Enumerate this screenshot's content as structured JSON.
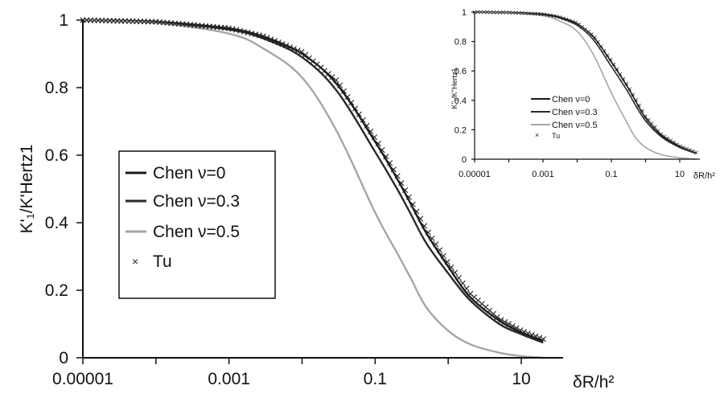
{
  "chart_data": [
    {
      "id": "main",
      "type": "line",
      "title": "",
      "xlabel": "δR/h²",
      "ylabel": "K'₁/K'Hertz1",
      "xscale": "log",
      "xlim": [
        1e-05,
        30
      ],
      "ylim": [
        0,
        1
      ],
      "x_ticks": [
        {
          "value": 1e-05,
          "label": "0.00001"
        },
        {
          "value": 0.001,
          "label": "0.001"
        },
        {
          "value": 0.1,
          "label": "0.1"
        },
        {
          "value": 10,
          "label": "10"
        }
      ],
      "y_ticks": [
        {
          "value": 0,
          "label": "0"
        },
        {
          "value": 0.2,
          "label": "0.2"
        },
        {
          "value": 0.4,
          "label": "0.4"
        },
        {
          "value": 0.6,
          "label": "0.6"
        },
        {
          "value": 0.8,
          "label": "0.8"
        },
        {
          "value": 1,
          "label": "1"
        }
      ],
      "legend_position": "left-middle",
      "series": [
        {
          "name": "Chen ν=0",
          "style": "line",
          "color": "#1a1a1a",
          "x": [
            1e-05,
            0.0001,
            0.001,
            0.003,
            0.01,
            0.03,
            0.1,
            0.2,
            0.3,
            0.5,
            1,
            2,
            5,
            10,
            20
          ],
          "y": [
            1.0,
            0.995,
            0.975,
            0.95,
            0.9,
            0.81,
            0.64,
            0.53,
            0.46,
            0.37,
            0.27,
            0.18,
            0.11,
            0.075,
            0.05
          ]
        },
        {
          "name": "Chen ν=0.3",
          "style": "line",
          "color": "#2a2a2a",
          "x": [
            1e-05,
            0.0001,
            0.001,
            0.003,
            0.01,
            0.03,
            0.1,
            0.2,
            0.3,
            0.5,
            1,
            2,
            5,
            10,
            20
          ],
          "y": [
            1.0,
            0.994,
            0.972,
            0.945,
            0.89,
            0.79,
            0.61,
            0.5,
            0.43,
            0.34,
            0.25,
            0.17,
            0.1,
            0.07,
            0.045
          ]
        },
        {
          "name": "Chen ν=0.5",
          "style": "line",
          "color": "#a6a6a6",
          "x": [
            1e-05,
            0.0001,
            0.001,
            0.003,
            0.01,
            0.03,
            0.1,
            0.2,
            0.3,
            0.5,
            1,
            2,
            5,
            10,
            20
          ],
          "y": [
            1.0,
            0.992,
            0.96,
            0.915,
            0.83,
            0.67,
            0.43,
            0.31,
            0.24,
            0.15,
            0.08,
            0.04,
            0.015,
            0.005,
            0.0
          ]
        },
        {
          "name": "Tu",
          "style": "marker",
          "color": "#222222",
          "x": [
            1e-05,
            0.0001,
            0.001,
            0.003,
            0.01,
            0.03,
            0.1,
            0.2,
            0.3,
            0.5,
            1,
            2,
            5,
            10,
            20
          ],
          "y": [
            1.0,
            0.995,
            0.976,
            0.952,
            0.905,
            0.82,
            0.65,
            0.54,
            0.47,
            0.38,
            0.28,
            0.19,
            0.115,
            0.08,
            0.055
          ]
        }
      ]
    },
    {
      "id": "inset",
      "type": "line",
      "title": "",
      "xlabel": "δR/h²",
      "ylabel": "K''₁/K''Hertz1",
      "xscale": "log",
      "xlim": [
        1e-05,
        50
      ],
      "ylim": [
        0,
        1
      ],
      "x_ticks": [
        {
          "value": 1e-05,
          "label": "0.00001"
        },
        {
          "value": 0.001,
          "label": "0.001"
        },
        {
          "value": 0.1,
          "label": "0.1"
        },
        {
          "value": 10,
          "label": "10"
        }
      ],
      "y_ticks": [
        {
          "value": 0,
          "label": "0"
        },
        {
          "value": 0.2,
          "label": "0.2"
        },
        {
          "value": 0.4,
          "label": "0.4"
        },
        {
          "value": 0.6,
          "label": "0.6"
        },
        {
          "value": 0.8,
          "label": "0.8"
        },
        {
          "value": 1,
          "label": "1"
        }
      ],
      "legend_position": "left-bottom",
      "series": [
        {
          "name": "Chen ν=0",
          "style": "line",
          "color": "#1a1a1a",
          "x": [
            1e-05,
            0.0001,
            0.001,
            0.003,
            0.01,
            0.03,
            0.1,
            0.3,
            0.5,
            1,
            3,
            10,
            30
          ],
          "y": [
            1.0,
            0.997,
            0.985,
            0.965,
            0.92,
            0.83,
            0.66,
            0.49,
            0.4,
            0.28,
            0.16,
            0.085,
            0.04
          ]
        },
        {
          "name": "Chen ν=0.3",
          "style": "line",
          "color": "#2a2a2a",
          "x": [
            1e-05,
            0.0001,
            0.001,
            0.003,
            0.01,
            0.03,
            0.1,
            0.3,
            0.5,
            1,
            3,
            10,
            30
          ],
          "y": [
            1.0,
            0.996,
            0.982,
            0.96,
            0.91,
            0.81,
            0.63,
            0.46,
            0.37,
            0.26,
            0.15,
            0.08,
            0.04
          ]
        },
        {
          "name": "Chen ν=0.5",
          "style": "line",
          "color": "#a6a6a6",
          "x": [
            1e-05,
            0.0001,
            0.001,
            0.003,
            0.01,
            0.03,
            0.1,
            0.3,
            0.5,
            1,
            3,
            10,
            30
          ],
          "y": [
            1.0,
            0.995,
            0.975,
            0.94,
            0.87,
            0.71,
            0.45,
            0.24,
            0.15,
            0.08,
            0.03,
            0.01,
            0.0
          ]
        },
        {
          "name": "Tu",
          "style": "marker",
          "color": "#222222",
          "x": [
            1e-05,
            0.0001,
            0.001,
            0.003,
            0.01,
            0.03,
            0.1,
            0.3,
            0.5,
            1,
            3,
            10,
            30
          ],
          "y": [
            1.0,
            0.997,
            0.986,
            0.967,
            0.925,
            0.84,
            0.67,
            0.5,
            0.41,
            0.29,
            0.165,
            0.09,
            0.045
          ]
        }
      ]
    }
  ]
}
